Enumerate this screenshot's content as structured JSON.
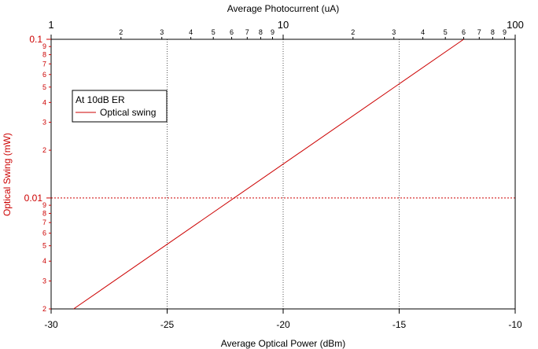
{
  "chart_data": {
    "type": "line",
    "top_axis": {
      "label": "Average Photocurrent (uA)",
      "scale": "log",
      "range": [
        1,
        100
      ],
      "major_ticks": [
        {
          "value": 1,
          "label": "1"
        },
        {
          "value": 10,
          "label": "10"
        },
        {
          "value": 100,
          "label": "100"
        }
      ],
      "minor_ticks": [
        {
          "value": 2,
          "label": "2"
        },
        {
          "value": 3,
          "label": "3"
        },
        {
          "value": 4,
          "label": "4"
        },
        {
          "value": 5,
          "label": "5"
        },
        {
          "value": 6,
          "label": "6"
        },
        {
          "value": 7,
          "label": "7"
        },
        {
          "value": 8,
          "label": "8"
        },
        {
          "value": 9,
          "label": "9"
        },
        {
          "value": 20,
          "label": "2"
        },
        {
          "value": 30,
          "label": "3"
        },
        {
          "value": 40,
          "label": "4"
        },
        {
          "value": 50,
          "label": "5"
        },
        {
          "value": 60,
          "label": "6"
        },
        {
          "value": 70,
          "label": "7"
        },
        {
          "value": 80,
          "label": "8"
        },
        {
          "value": 90,
          "label": "9"
        }
      ]
    },
    "x_axis": {
      "label": "Average Optical Power (dBm)",
      "scale": "linear",
      "range": [
        -30,
        -10
      ],
      "ticks": [
        {
          "value": -30,
          "label": "-30"
        },
        {
          "value": -25,
          "label": "-25"
        },
        {
          "value": -20,
          "label": "-20"
        },
        {
          "value": -15,
          "label": "-15"
        },
        {
          "value": -10,
          "label": "-10"
        }
      ],
      "grid_values": [
        -25,
        -20,
        -15
      ]
    },
    "y_axis": {
      "label": "Optical Swing (mW)",
      "scale": "log",
      "range": [
        0.002,
        0.1
      ],
      "color": "#cc0000",
      "major_ticks": [
        {
          "value": 0.01,
          "label": "0.01"
        },
        {
          "value": 0.1,
          "label": "0.1"
        }
      ],
      "minor_ticks": [
        {
          "value": 0.002,
          "label": "2"
        },
        {
          "value": 0.003,
          "label": "3"
        },
        {
          "value": 0.004,
          "label": "4"
        },
        {
          "value": 0.005,
          "label": "5"
        },
        {
          "value": 0.006,
          "label": "6"
        },
        {
          "value": 0.007,
          "label": "7"
        },
        {
          "value": 0.008,
          "label": "8"
        },
        {
          "value": 0.009,
          "label": "9"
        },
        {
          "value": 0.02,
          "label": "2"
        },
        {
          "value": 0.03,
          "label": "3"
        },
        {
          "value": 0.04,
          "label": "4"
        },
        {
          "value": 0.05,
          "label": "5"
        },
        {
          "value": 0.06,
          "label": "6"
        },
        {
          "value": 0.07,
          "label": "7"
        },
        {
          "value": 0.08,
          "label": "8"
        },
        {
          "value": 0.09,
          "label": "9"
        }
      ],
      "grid_values": [
        0.01
      ]
    },
    "series": [
      {
        "name": "Optical swing",
        "color": "#cc0000",
        "x": [
          -29.03,
          -12.22
        ],
        "y": [
          0.002,
          0.1
        ]
      }
    ],
    "legend": {
      "title": "At 10dB ER",
      "placement": "top-left",
      "entries": [
        {
          "label": "Optical swing",
          "color": "#cc0000"
        }
      ]
    },
    "grid": "dotted at major ticks"
  }
}
